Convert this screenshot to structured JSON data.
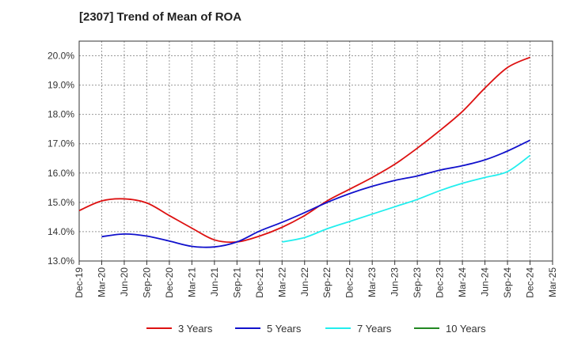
{
  "chart_data": {
    "type": "line",
    "title": "[2307]  Trend of Mean of ROA",
    "xlabel": "",
    "ylabel": "",
    "ylim": [
      13.0,
      20.5
    ],
    "y_ticks": [
      "13.0%",
      "14.0%",
      "15.0%",
      "16.0%",
      "17.0%",
      "18.0%",
      "19.0%",
      "20.0%"
    ],
    "y_tick_values": [
      13,
      14,
      15,
      16,
      17,
      18,
      19,
      20
    ],
    "categories": [
      "Dec-19",
      "Mar-20",
      "Jun-20",
      "Sep-20",
      "Dec-20",
      "Mar-21",
      "Jun-21",
      "Sep-21",
      "Dec-21",
      "Mar-22",
      "Jun-22",
      "Sep-22",
      "Dec-22",
      "Mar-23",
      "Jun-23",
      "Sep-23",
      "Dec-23",
      "Mar-24",
      "Jun-24",
      "Sep-24",
      "Dec-24",
      "Mar-25"
    ],
    "grid": true,
    "legend_position": "bottom",
    "series": [
      {
        "name": "3 Years",
        "color": "#dd1111",
        "values": [
          14.72,
          15.05,
          15.12,
          14.98,
          14.55,
          14.12,
          13.72,
          13.65,
          13.85,
          14.15,
          14.55,
          15.05,
          15.45,
          15.85,
          16.3,
          16.85,
          17.45,
          18.1,
          18.9,
          19.6,
          19.95,
          null
        ]
      },
      {
        "name": "5 Years",
        "color": "#1111cc",
        "values": [
          null,
          13.83,
          13.92,
          13.85,
          13.68,
          13.5,
          13.48,
          13.65,
          14.02,
          14.32,
          14.65,
          15.0,
          15.3,
          15.55,
          15.75,
          15.9,
          16.1,
          16.25,
          16.45,
          16.75,
          17.12,
          null
        ]
      },
      {
        "name": "7 Years",
        "color": "#22eeee",
        "values": [
          null,
          null,
          null,
          null,
          null,
          null,
          null,
          null,
          null,
          13.65,
          13.8,
          14.1,
          14.35,
          14.6,
          14.85,
          15.1,
          15.4,
          15.65,
          15.85,
          16.05,
          16.6,
          null
        ]
      },
      {
        "name": "10 Years",
        "color": "#228822",
        "values": [
          null,
          null,
          null,
          null,
          null,
          null,
          null,
          null,
          null,
          null,
          null,
          null,
          null,
          null,
          null,
          null,
          null,
          null,
          null,
          null,
          null,
          null
        ]
      }
    ]
  }
}
